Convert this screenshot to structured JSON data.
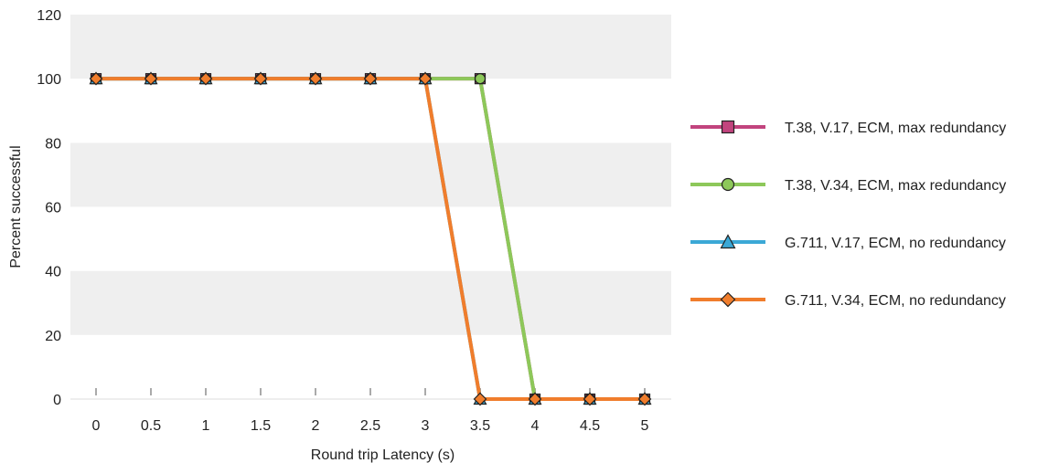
{
  "chart_data": {
    "type": "line",
    "title": "",
    "xlabel": "Round trip Latency (s)",
    "ylabel": "Percent successful",
    "x": [
      "0",
      "0.5",
      "1",
      "1.5",
      "2",
      "2.5",
      "3",
      "3.5",
      "4",
      "4.5",
      "5"
    ],
    "yticks": [
      "0",
      "20",
      "40",
      "60",
      "80",
      "100",
      "120"
    ],
    "ylim": [
      0,
      120
    ],
    "grid": "alternating horizontal bands",
    "legend_position": "right",
    "series": [
      {
        "name": "T.38, V.17, ECM, max redundancy",
        "marker": "square",
        "color": "#c2447e",
        "values": [
          100,
          100,
          100,
          100,
          100,
          100,
          100,
          100,
          0,
          0,
          0
        ]
      },
      {
        "name": "T.38, V.34, ECM, max redundancy",
        "marker": "circle",
        "color": "#8dc85a",
        "values": [
          100,
          100,
          100,
          100,
          100,
          100,
          100,
          100,
          0,
          0,
          0
        ]
      },
      {
        "name": "G.711, V.17, ECM, no redundancy",
        "marker": "triangle",
        "color": "#3ba8d6",
        "values": [
          100,
          100,
          100,
          100,
          100,
          100,
          100,
          0,
          0,
          0,
          0
        ]
      },
      {
        "name": "G.711, V.34, ECM, no redundancy",
        "marker": "diamond",
        "color": "#f07d2c",
        "values": [
          100,
          100,
          100,
          100,
          100,
          100,
          100,
          0,
          0,
          0,
          0
        ]
      }
    ]
  }
}
